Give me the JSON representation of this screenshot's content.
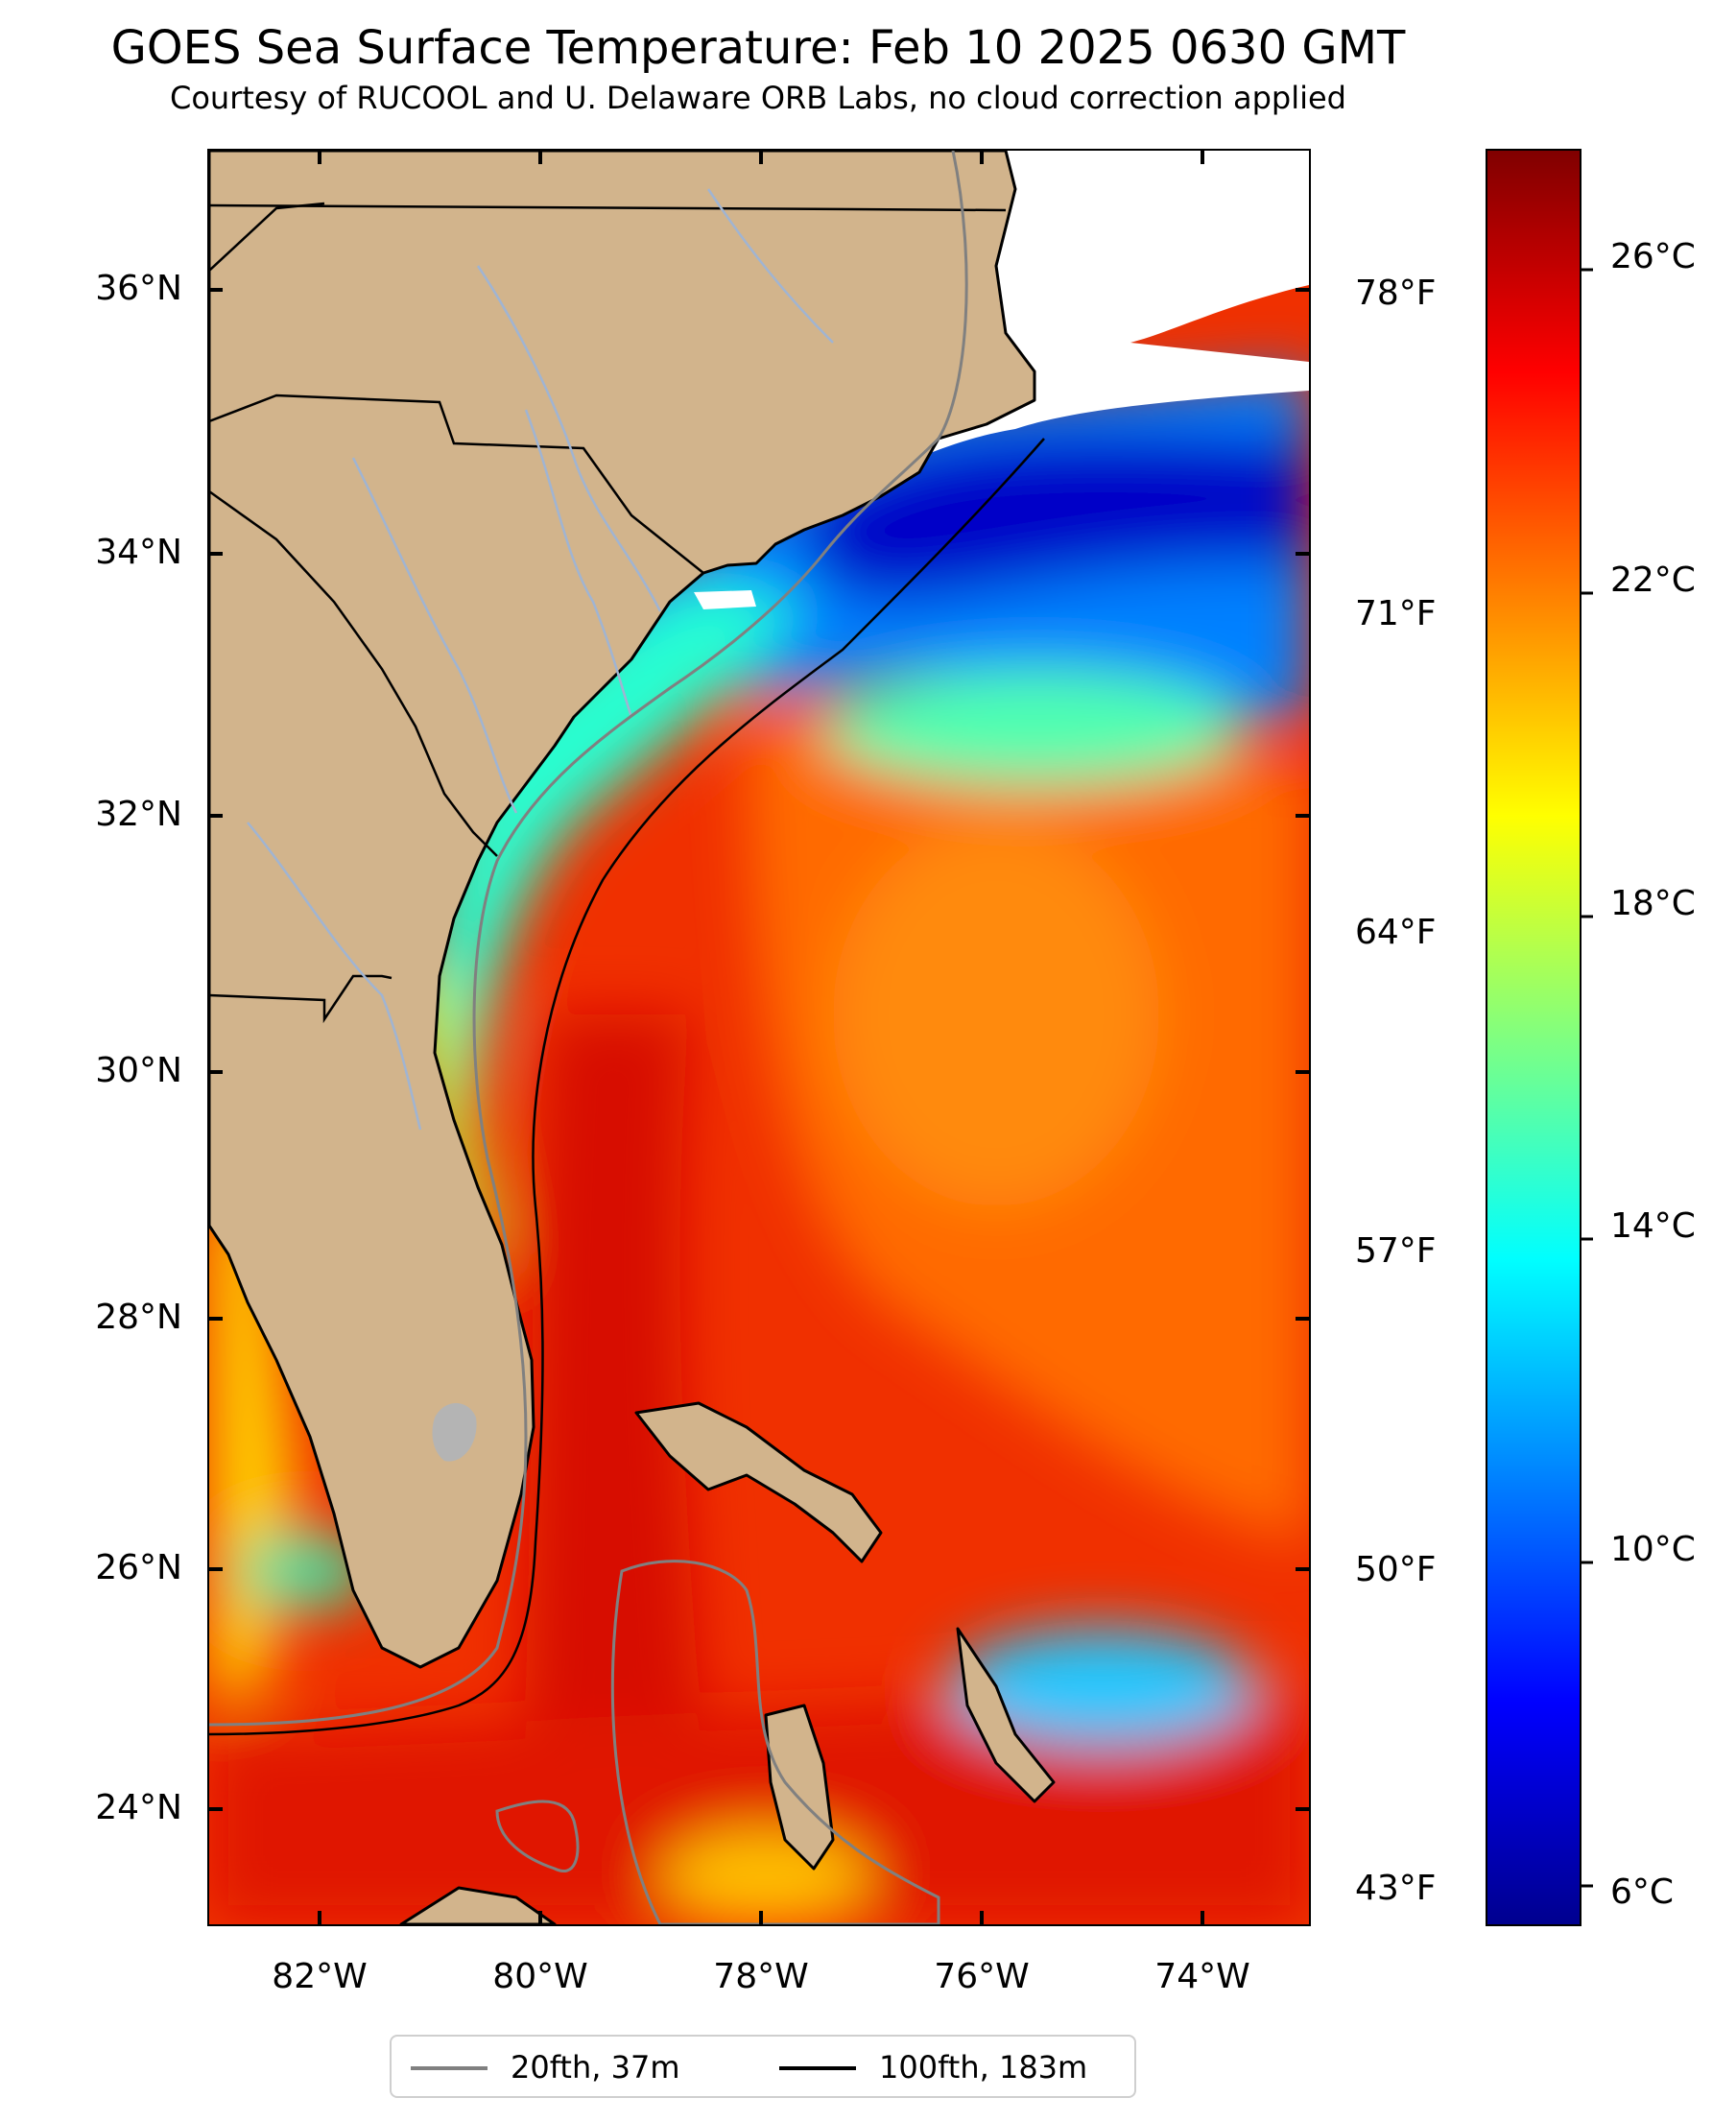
{
  "header": {
    "title": "GOES Sea Surface Temperature: Feb 10 2025 0630 GMT",
    "subtitle": "Courtesy of RUCOOL and U. Delaware ORB Labs, no cloud correction applied"
  },
  "map": {
    "extent": {
      "lon_min": -83,
      "lon_max": -73,
      "lat_min": 23.1,
      "lat_max": 37.0
    },
    "lat_labels": [
      {
        "lat": 36,
        "text": "36°N"
      },
      {
        "lat": 34,
        "text": "34°N"
      },
      {
        "lat": 32,
        "text": "32°N"
      },
      {
        "lat": 30,
        "text": "30°N"
      },
      {
        "lat": 28,
        "text": "28°N"
      },
      {
        "lat": 26,
        "text": "26°N"
      },
      {
        "lat": 24,
        "text": "24°N"
      }
    ],
    "lon_labels": [
      {
        "lon": -82,
        "text": "82°W"
      },
      {
        "lon": -80,
        "text": "80°W"
      },
      {
        "lon": -78,
        "text": "78°W"
      },
      {
        "lon": -76,
        "text": "76°W"
      },
      {
        "lon": -74,
        "text": "74°W"
      }
    ],
    "fahrenheit_labels": [
      {
        "value": 78,
        "text": "78°F"
      },
      {
        "value": 71,
        "text": "71°F"
      },
      {
        "value": 64,
        "text": "64°F"
      },
      {
        "value": 57,
        "text": "57°F"
      },
      {
        "value": 50,
        "text": "50°F"
      },
      {
        "value": 43,
        "text": "43°F"
      }
    ],
    "colors": {
      "land": "#d2b48c",
      "land_border": "#000000",
      "rivers": "#a0b4d2",
      "isobath_20fth": "#808080",
      "isobath_100fth": "#000000",
      "cloud": "#ffffff"
    }
  },
  "colorbar": {
    "colormap": "jet",
    "celsius_min": 5.5,
    "celsius_max": 27.5,
    "celsius_labels": [
      {
        "value": 26,
        "text": "26°C"
      },
      {
        "value": 22,
        "text": "22°C"
      },
      {
        "value": 18,
        "text": "18°C"
      },
      {
        "value": 14,
        "text": "14°C"
      },
      {
        "value": 10,
        "text": "10°C"
      },
      {
        "value": 6,
        "text": "6°C"
      }
    ]
  },
  "legend": {
    "items": [
      {
        "label": "20fth, 37m",
        "color": "#808080"
      },
      {
        "label": "100fth, 183m",
        "color": "#000000"
      }
    ]
  }
}
